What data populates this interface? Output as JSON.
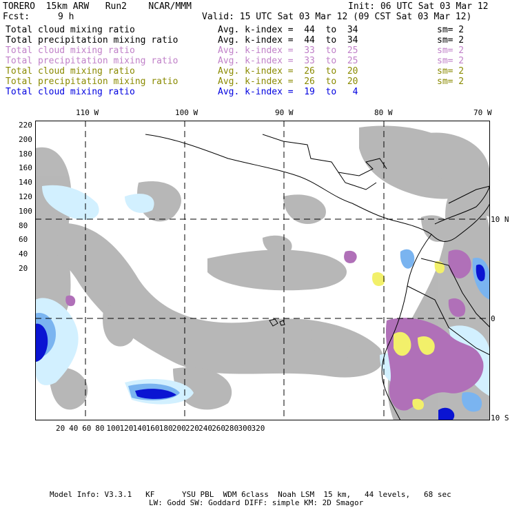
{
  "header": {
    "title_left": "TORERO  15km ARW   Run2    NCAR/MMM",
    "init": "Init: 06 UTC Sat 03 Mar 12",
    "fcst_label": "Fcst:",
    "fcst_value": "9 h",
    "valid": "Valid: 15 UTC Sat 03 Mar 12 (09 CST Sat 03 Mar 12)"
  },
  "legend": [
    {
      "field": "Total cloud mixing ratio",
      "index": "Avg. k-index =  44  to  34",
      "sm": "sm= 2",
      "color": "#000000"
    },
    {
      "field": "Total precipitation mixing ratio",
      "index": "Avg. k-index =  44  to  34",
      "sm": "sm= 2",
      "color": "#000000"
    },
    {
      "field": "Total cloud mixing ratio",
      "index": "Avg. k-index =  33  to  25",
      "sm": "sm= 2",
      "color": "#c080c8"
    },
    {
      "field": "Total precipitation mixing ratio",
      "index": "Avg. k-index =  33  to  25",
      "sm": "sm= 2",
      "color": "#c080c8"
    },
    {
      "field": "Total cloud mixing ratio",
      "index": "Avg. k-index =  26  to  20",
      "sm": "sm= 2",
      "color": "#8a8a00"
    },
    {
      "field": "Total precipitation mixing ratio",
      "index": "Avg. k-index =  26  to  20",
      "sm": "sm= 2",
      "color": "#8a8a00"
    },
    {
      "field": "Total cloud mixing ratio",
      "index": "Avg. k-index =  19  to   4",
      "sm": "",
      "color": "#0000e0"
    }
  ],
  "map": {
    "lon_labels": [
      "110 W",
      "100 W",
      "90 W",
      "80 W",
      "70 W"
    ],
    "lat_labels": [
      "10 N",
      "0",
      "10 S"
    ],
    "y_ticks": [
      "220",
      "200",
      "180",
      "160",
      "140",
      "120",
      "100",
      "80",
      "60",
      "40",
      "20"
    ],
    "x_ticks": [
      "20",
      "40",
      "60",
      "80",
      "100",
      "120",
      "140",
      "160",
      "180",
      "200",
      "220",
      "240",
      "260",
      "280",
      "300",
      "320"
    ],
    "colors": {
      "cloud_low": "#b4b4b4",
      "cloud_mid": "#b070b8",
      "cloud_high": "#f2f06a",
      "precip_light": "#d2f0ff",
      "precip_mid": "#7ab4f0",
      "precip_heavy": "#0a14d2"
    }
  },
  "footer": {
    "line1": "Model Info: V3.3.1   KF      YSU PBL  WDM 6class  Noah LSM  15 km,   44 levels,   68 sec",
    "line2": "LW: Godd SW: Goddard DIFF: simple KM: 2D Smagor"
  }
}
